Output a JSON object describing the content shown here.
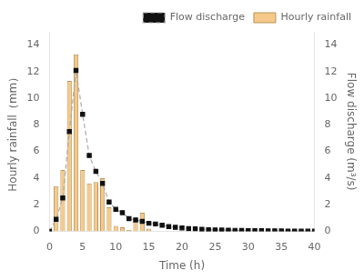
{
  "chart_data": {
    "type": "bar",
    "xlabel": "Time (h)",
    "ylabel": "Hourly rainfall（mm）",
    "y2label": "Flow discharge (m³/s)",
    "xlim": [
      0,
      40
    ],
    "xticks": [
      0,
      5,
      10,
      15,
      20,
      25,
      30,
      35,
      40
    ],
    "ylim": [
      0,
      15.0
    ],
    "yticks": [
      0,
      2,
      4,
      6,
      8,
      10,
      12,
      14
    ],
    "y2lim": [
      0,
      15.0
    ],
    "y2ticks": [
      0,
      2,
      4,
      6,
      8,
      10,
      12,
      14
    ],
    "grid": false,
    "legend": "upper right",
    "series": [
      {
        "name": "Hourly rainfall",
        "type": "bar",
        "color": "#f5c98a",
        "x": [
          1,
          2,
          3,
          4,
          5,
          6,
          7,
          8,
          9,
          10,
          11,
          12,
          13,
          14,
          15
        ],
        "values": [
          3.4,
          4.6,
          11.3,
          13.3,
          4.6,
          3.6,
          3.7,
          4.0,
          1.8,
          0.4,
          0.3,
          0.1,
          0.8,
          1.4,
          0.2
        ]
      },
      {
        "name": "Flow discharge",
        "type": "line",
        "axis": "y2",
        "color": "#aaaaaa",
        "marker": "square",
        "line_style": "dashed",
        "x": [
          0,
          1,
          2,
          3,
          4,
          5,
          6,
          7,
          8,
          9,
          10,
          11,
          12,
          13,
          14,
          15,
          16,
          17,
          18,
          19,
          20,
          21,
          22,
          23,
          24,
          25,
          26,
          27,
          28,
          29,
          30,
          31,
          32,
          33,
          34,
          35,
          36,
          37,
          38,
          39,
          40
        ],
        "values": [
          0.0,
          0.9,
          2.5,
          7.5,
          12.1,
          8.8,
          5.7,
          4.5,
          3.6,
          2.2,
          1.65,
          1.4,
          0.95,
          0.85,
          0.75,
          0.6,
          0.55,
          0.45,
          0.35,
          0.3,
          0.25,
          0.2,
          0.18,
          0.15,
          0.12,
          0.1,
          0.09,
          0.08,
          0.07,
          0.06,
          0.05,
          0.045,
          0.04,
          0.035,
          0.03,
          0.025,
          0.02,
          0.015,
          0.01,
          0.008,
          0.005
        ]
      }
    ]
  }
}
